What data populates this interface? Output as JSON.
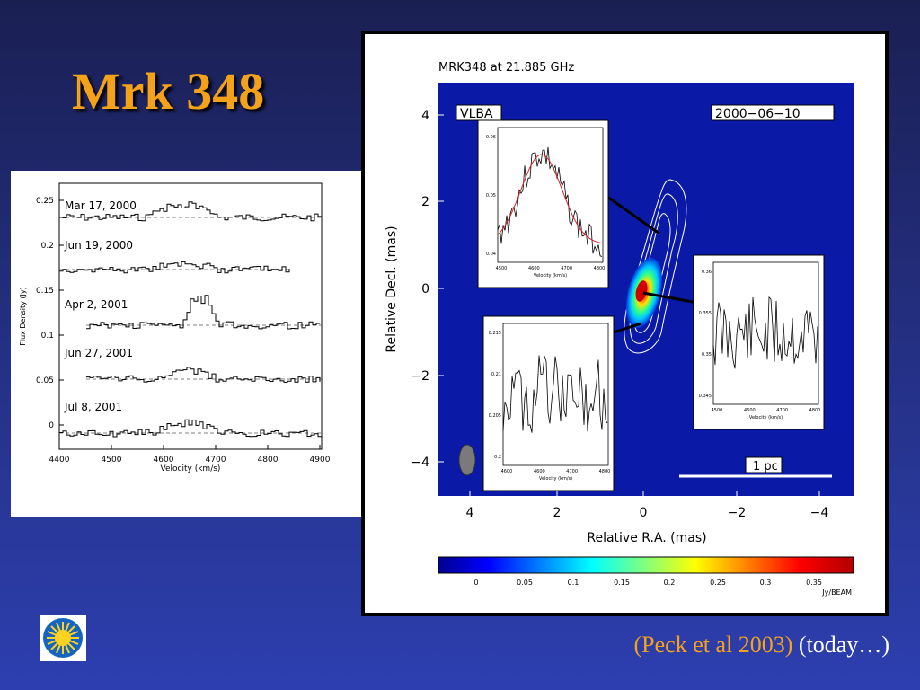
{
  "slide": {
    "title": "Mrk 348",
    "citation_ref": "(Peck et al 2003)",
    "citation_note": "(today…)"
  },
  "colors": {
    "title": "#f4a21a",
    "background": "#2a3590",
    "citation_ref": "#f4a21a",
    "citation_note": "#ffffff"
  },
  "spectra_figure": {
    "ylabel": "Flux Density (Jy)",
    "xlabel": "Velocity (km/s)",
    "xticks": [
      "4400",
      "4500",
      "4600",
      "4700",
      "4800",
      "4900"
    ],
    "yticks": [
      "0",
      "0.05",
      "0.1",
      "0.15",
      "0.2",
      "0.25"
    ],
    "epochs": [
      "Mar 17, 2000",
      "Jun 19, 2000",
      "Apr 2, 2001",
      "Jun 27, 2001",
      "Jul 8, 2001"
    ]
  },
  "vlba_figure": {
    "title": "MRK348 at 21.885 GHz",
    "instrument": "VLBA",
    "date": "2000−06−10",
    "xlabel": "Relative R.A. (mas)",
    "ylabel": "Relative Decl. (mas)",
    "xticks": [
      "4",
      "2",
      "0",
      "−2",
      "−4"
    ],
    "yticks": [
      "4",
      "2",
      "0",
      "−2",
      "−4"
    ],
    "scale_bar": "1 pc",
    "colorbar_ticks": [
      "0",
      "0.05",
      "0.1",
      "0.15",
      "0.2",
      "0.25",
      "0.3",
      "0.35"
    ],
    "colorbar_unit": "Jy/BEAM",
    "insets": [
      {
        "yticks": [
          "0.06",
          "0.05",
          "0.04"
        ],
        "xticks": [
          "4500",
          "4600",
          "4700",
          "4800"
        ],
        "xlabel": "Velocity (km/s)"
      },
      {
        "yticks": [
          "0.36",
          "0.355",
          "0.35",
          "0.345"
        ],
        "xticks": [
          "4500",
          "4600",
          "4700",
          "4800"
        ],
        "xlabel": "Velocity (km/s)"
      },
      {
        "yticks": [
          "0.215",
          "0.21",
          "0.205",
          "0.2"
        ],
        "xticks": [
          "4600",
          "4600",
          "4700",
          "4800"
        ],
        "xlabel": "Velocity (km/s)"
      }
    ]
  }
}
